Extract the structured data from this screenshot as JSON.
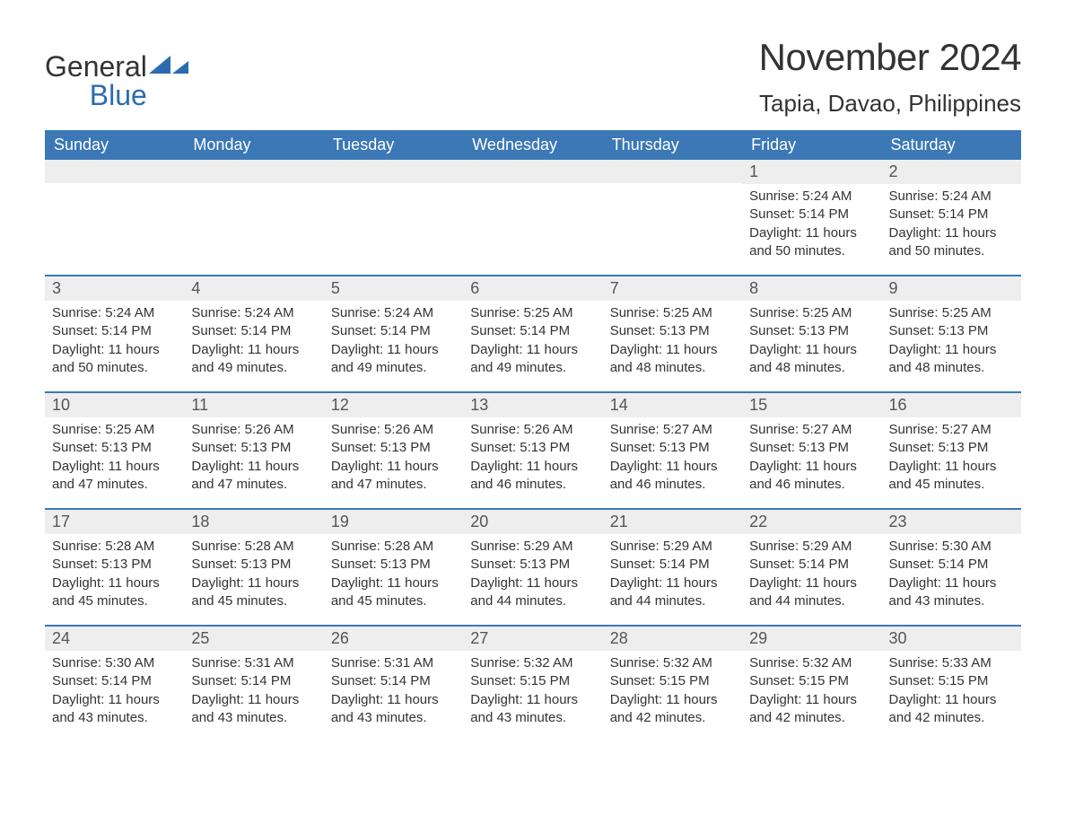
{
  "brand": {
    "line1": "General",
    "line2": "Blue"
  },
  "title": "November 2024",
  "location": "Tapia, Davao, Philippines",
  "colors": {
    "header_bg": "#3b78b5",
    "header_text": "#ffffff",
    "daynum_bg": "#eeeeee",
    "week_border": "#3b78b5",
    "body_text": "#333333",
    "brand_accent": "#2b6cb0",
    "background": "#ffffff"
  },
  "typography": {
    "title_fontsize": 42,
    "location_fontsize": 26,
    "dow_fontsize": 18,
    "daynum_fontsize": 18,
    "body_fontsize": 15,
    "font_family": "Arial"
  },
  "layout": {
    "columns": 7,
    "rows": 5,
    "start_day_index": 5
  },
  "days_of_week": [
    "Sunday",
    "Monday",
    "Tuesday",
    "Wednesday",
    "Thursday",
    "Friday",
    "Saturday"
  ],
  "weeks": [
    [
      {
        "day": "",
        "sunrise": "",
        "sunset": "",
        "daylight": ""
      },
      {
        "day": "",
        "sunrise": "",
        "sunset": "",
        "daylight": ""
      },
      {
        "day": "",
        "sunrise": "",
        "sunset": "",
        "daylight": ""
      },
      {
        "day": "",
        "sunrise": "",
        "sunset": "",
        "daylight": ""
      },
      {
        "day": "",
        "sunrise": "",
        "sunset": "",
        "daylight": ""
      },
      {
        "day": "1",
        "sunrise": "Sunrise: 5:24 AM",
        "sunset": "Sunset: 5:14 PM",
        "daylight": "Daylight: 11 hours and 50 minutes."
      },
      {
        "day": "2",
        "sunrise": "Sunrise: 5:24 AM",
        "sunset": "Sunset: 5:14 PM",
        "daylight": "Daylight: 11 hours and 50 minutes."
      }
    ],
    [
      {
        "day": "3",
        "sunrise": "Sunrise: 5:24 AM",
        "sunset": "Sunset: 5:14 PM",
        "daylight": "Daylight: 11 hours and 50 minutes."
      },
      {
        "day": "4",
        "sunrise": "Sunrise: 5:24 AM",
        "sunset": "Sunset: 5:14 PM",
        "daylight": "Daylight: 11 hours and 49 minutes."
      },
      {
        "day": "5",
        "sunrise": "Sunrise: 5:24 AM",
        "sunset": "Sunset: 5:14 PM",
        "daylight": "Daylight: 11 hours and 49 minutes."
      },
      {
        "day": "6",
        "sunrise": "Sunrise: 5:25 AM",
        "sunset": "Sunset: 5:14 PM",
        "daylight": "Daylight: 11 hours and 49 minutes."
      },
      {
        "day": "7",
        "sunrise": "Sunrise: 5:25 AM",
        "sunset": "Sunset: 5:13 PM",
        "daylight": "Daylight: 11 hours and 48 minutes."
      },
      {
        "day": "8",
        "sunrise": "Sunrise: 5:25 AM",
        "sunset": "Sunset: 5:13 PM",
        "daylight": "Daylight: 11 hours and 48 minutes."
      },
      {
        "day": "9",
        "sunrise": "Sunrise: 5:25 AM",
        "sunset": "Sunset: 5:13 PM",
        "daylight": "Daylight: 11 hours and 48 minutes."
      }
    ],
    [
      {
        "day": "10",
        "sunrise": "Sunrise: 5:25 AM",
        "sunset": "Sunset: 5:13 PM",
        "daylight": "Daylight: 11 hours and 47 minutes."
      },
      {
        "day": "11",
        "sunrise": "Sunrise: 5:26 AM",
        "sunset": "Sunset: 5:13 PM",
        "daylight": "Daylight: 11 hours and 47 minutes."
      },
      {
        "day": "12",
        "sunrise": "Sunrise: 5:26 AM",
        "sunset": "Sunset: 5:13 PM",
        "daylight": "Daylight: 11 hours and 47 minutes."
      },
      {
        "day": "13",
        "sunrise": "Sunrise: 5:26 AM",
        "sunset": "Sunset: 5:13 PM",
        "daylight": "Daylight: 11 hours and 46 minutes."
      },
      {
        "day": "14",
        "sunrise": "Sunrise: 5:27 AM",
        "sunset": "Sunset: 5:13 PM",
        "daylight": "Daylight: 11 hours and 46 minutes."
      },
      {
        "day": "15",
        "sunrise": "Sunrise: 5:27 AM",
        "sunset": "Sunset: 5:13 PM",
        "daylight": "Daylight: 11 hours and 46 minutes."
      },
      {
        "day": "16",
        "sunrise": "Sunrise: 5:27 AM",
        "sunset": "Sunset: 5:13 PM",
        "daylight": "Daylight: 11 hours and 45 minutes."
      }
    ],
    [
      {
        "day": "17",
        "sunrise": "Sunrise: 5:28 AM",
        "sunset": "Sunset: 5:13 PM",
        "daylight": "Daylight: 11 hours and 45 minutes."
      },
      {
        "day": "18",
        "sunrise": "Sunrise: 5:28 AM",
        "sunset": "Sunset: 5:13 PM",
        "daylight": "Daylight: 11 hours and 45 minutes."
      },
      {
        "day": "19",
        "sunrise": "Sunrise: 5:28 AM",
        "sunset": "Sunset: 5:13 PM",
        "daylight": "Daylight: 11 hours and 45 minutes."
      },
      {
        "day": "20",
        "sunrise": "Sunrise: 5:29 AM",
        "sunset": "Sunset: 5:13 PM",
        "daylight": "Daylight: 11 hours and 44 minutes."
      },
      {
        "day": "21",
        "sunrise": "Sunrise: 5:29 AM",
        "sunset": "Sunset: 5:14 PM",
        "daylight": "Daylight: 11 hours and 44 minutes."
      },
      {
        "day": "22",
        "sunrise": "Sunrise: 5:29 AM",
        "sunset": "Sunset: 5:14 PM",
        "daylight": "Daylight: 11 hours and 44 minutes."
      },
      {
        "day": "23",
        "sunrise": "Sunrise: 5:30 AM",
        "sunset": "Sunset: 5:14 PM",
        "daylight": "Daylight: 11 hours and 43 minutes."
      }
    ],
    [
      {
        "day": "24",
        "sunrise": "Sunrise: 5:30 AM",
        "sunset": "Sunset: 5:14 PM",
        "daylight": "Daylight: 11 hours and 43 minutes."
      },
      {
        "day": "25",
        "sunrise": "Sunrise: 5:31 AM",
        "sunset": "Sunset: 5:14 PM",
        "daylight": "Daylight: 11 hours and 43 minutes."
      },
      {
        "day": "26",
        "sunrise": "Sunrise: 5:31 AM",
        "sunset": "Sunset: 5:14 PM",
        "daylight": "Daylight: 11 hours and 43 minutes."
      },
      {
        "day": "27",
        "sunrise": "Sunrise: 5:32 AM",
        "sunset": "Sunset: 5:15 PM",
        "daylight": "Daylight: 11 hours and 43 minutes."
      },
      {
        "day": "28",
        "sunrise": "Sunrise: 5:32 AM",
        "sunset": "Sunset: 5:15 PM",
        "daylight": "Daylight: 11 hours and 42 minutes."
      },
      {
        "day": "29",
        "sunrise": "Sunrise: 5:32 AM",
        "sunset": "Sunset: 5:15 PM",
        "daylight": "Daylight: 11 hours and 42 minutes."
      },
      {
        "day": "30",
        "sunrise": "Sunrise: 5:33 AM",
        "sunset": "Sunset: 5:15 PM",
        "daylight": "Daylight: 11 hours and 42 minutes."
      }
    ]
  ]
}
